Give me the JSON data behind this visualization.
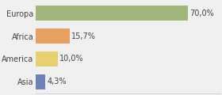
{
  "categories": [
    "Asia",
    "America",
    "Africa",
    "Europa"
  ],
  "values": [
    4.3,
    10.0,
    15.7,
    70.0
  ],
  "labels": [
    "4,3%",
    "10,0%",
    "15,7%",
    "70,0%"
  ],
  "bar_colors": [
    "#6a7fb5",
    "#e8a870",
    "#e8a870",
    "#a8bc8a"
  ],
  "bar_colors_fixed": [
    "#7080b8",
    "#e8d070",
    "#e8a060",
    "#a0b87a"
  ],
  "background_color": "#f0f0f0",
  "xlim": [
    0,
    85
  ],
  "bar_height": 0.65,
  "label_fontsize": 7,
  "tick_fontsize": 7
}
